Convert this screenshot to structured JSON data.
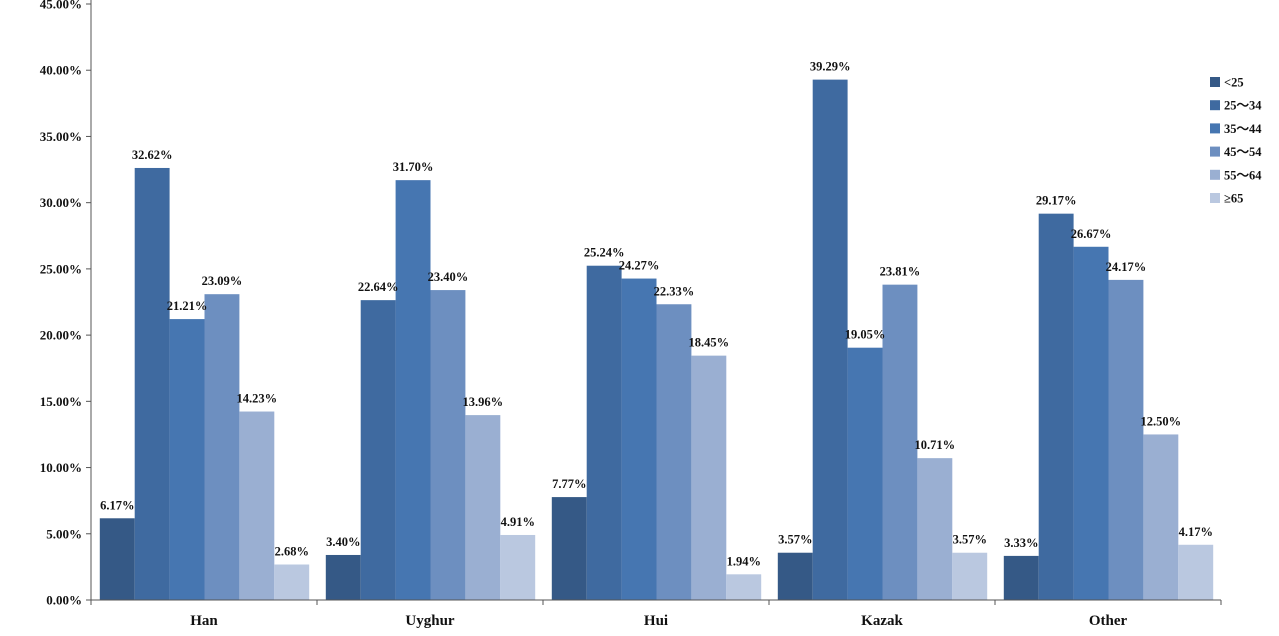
{
  "chart_data": {
    "type": "bar",
    "categories": [
      "Han",
      "Uyghur",
      "Hui",
      "Kazak",
      "Other"
    ],
    "series": [
      {
        "name": "<25",
        "color": "#355986",
        "values": [
          6.17,
          3.4,
          7.77,
          3.57,
          3.33
        ]
      },
      {
        "name": "25～34",
        "color": "#3f6aa0",
        "values": [
          32.62,
          22.64,
          25.24,
          39.29,
          29.17
        ]
      },
      {
        "name": "35～44",
        "color": "#4676b1",
        "values": [
          21.21,
          31.7,
          24.27,
          19.05,
          26.67
        ]
      },
      {
        "name": "45～54",
        "color": "#6d8fc0",
        "values": [
          23.09,
          23.4,
          22.33,
          23.81,
          24.17
        ]
      },
      {
        "name": "55～64",
        "color": "#9aafd2",
        "values": [
          14.23,
          13.96,
          18.45,
          10.71,
          12.5
        ]
      },
      {
        "name": "≥65",
        "color": "#bac8e0",
        "values": [
          2.68,
          4.91,
          1.94,
          3.57,
          4.17
        ]
      }
    ],
    "data_labels": [
      [
        "6.17%",
        "32.62%",
        "21.21%",
        "23.09%",
        "14.23%",
        "2.68%"
      ],
      [
        "3.40%",
        "22.64%",
        "31.70%",
        "23.40%",
        "13.96%",
        "4.91%"
      ],
      [
        "7.77%",
        "25.24%",
        "24.27%",
        "22.33%",
        "18.45%",
        "1.94%"
      ],
      [
        "3.57%",
        "39.29%",
        "19.05%",
        "23.81%",
        "10.71%",
        "3.57%"
      ],
      [
        "3.33%",
        "29.17%",
        "26.67%",
        "24.17%",
        "12.50%",
        "4.17%"
      ]
    ],
    "y_ticks": [
      "0.00%",
      "5.00%",
      "10.00%",
      "15.00%",
      "20.00%",
      "25.00%",
      "30.00%",
      "35.00%",
      "40.00%",
      "45.00%"
    ],
    "ylim": [
      0,
      45
    ],
    "title": "",
    "xlabel": "",
    "ylabel": "",
    "grid": false,
    "legend_position": "right"
  }
}
